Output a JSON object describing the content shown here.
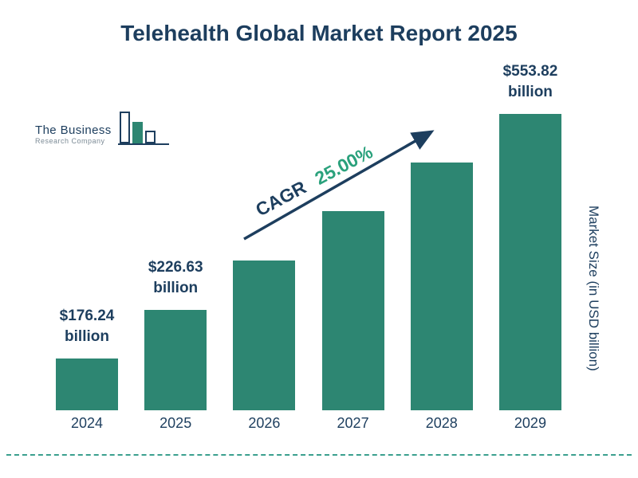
{
  "title": "Telehealth Global Market Report 2025",
  "logo": {
    "name": "The Business",
    "subname": "Research Company"
  },
  "cagr": {
    "label": "CAGR",
    "value": "25.00%"
  },
  "y_axis_label": "Market Size (in USD billion)",
  "colors": {
    "navy": "#1d3e5e",
    "bar_teal": "#2d8672",
    "cagr_green": "#2aa17c",
    "dash_teal": "#3ba08e"
  },
  "chart_data": {
    "type": "bar",
    "title": "Telehealth Global Market Report 2025",
    "categories": [
      "2024",
      "2025",
      "2026",
      "2027",
      "2028",
      "2029"
    ],
    "values": [
      176.24,
      226.63,
      283.29,
      354.11,
      442.64,
      553.82
    ],
    "value_labels": [
      {
        "index": 0,
        "line1": "$176.24",
        "line2": "billion"
      },
      {
        "index": 1,
        "line1": "$226.63",
        "line2": "billion"
      },
      {
        "index": 5,
        "line1": "$553.82",
        "line2": "billion"
      }
    ],
    "xlabel": "",
    "ylabel": "Market Size (in USD billion)",
    "annotation": "CAGR 25.00%",
    "legend": false,
    "grid": false,
    "bar_color": "#2d8672"
  }
}
